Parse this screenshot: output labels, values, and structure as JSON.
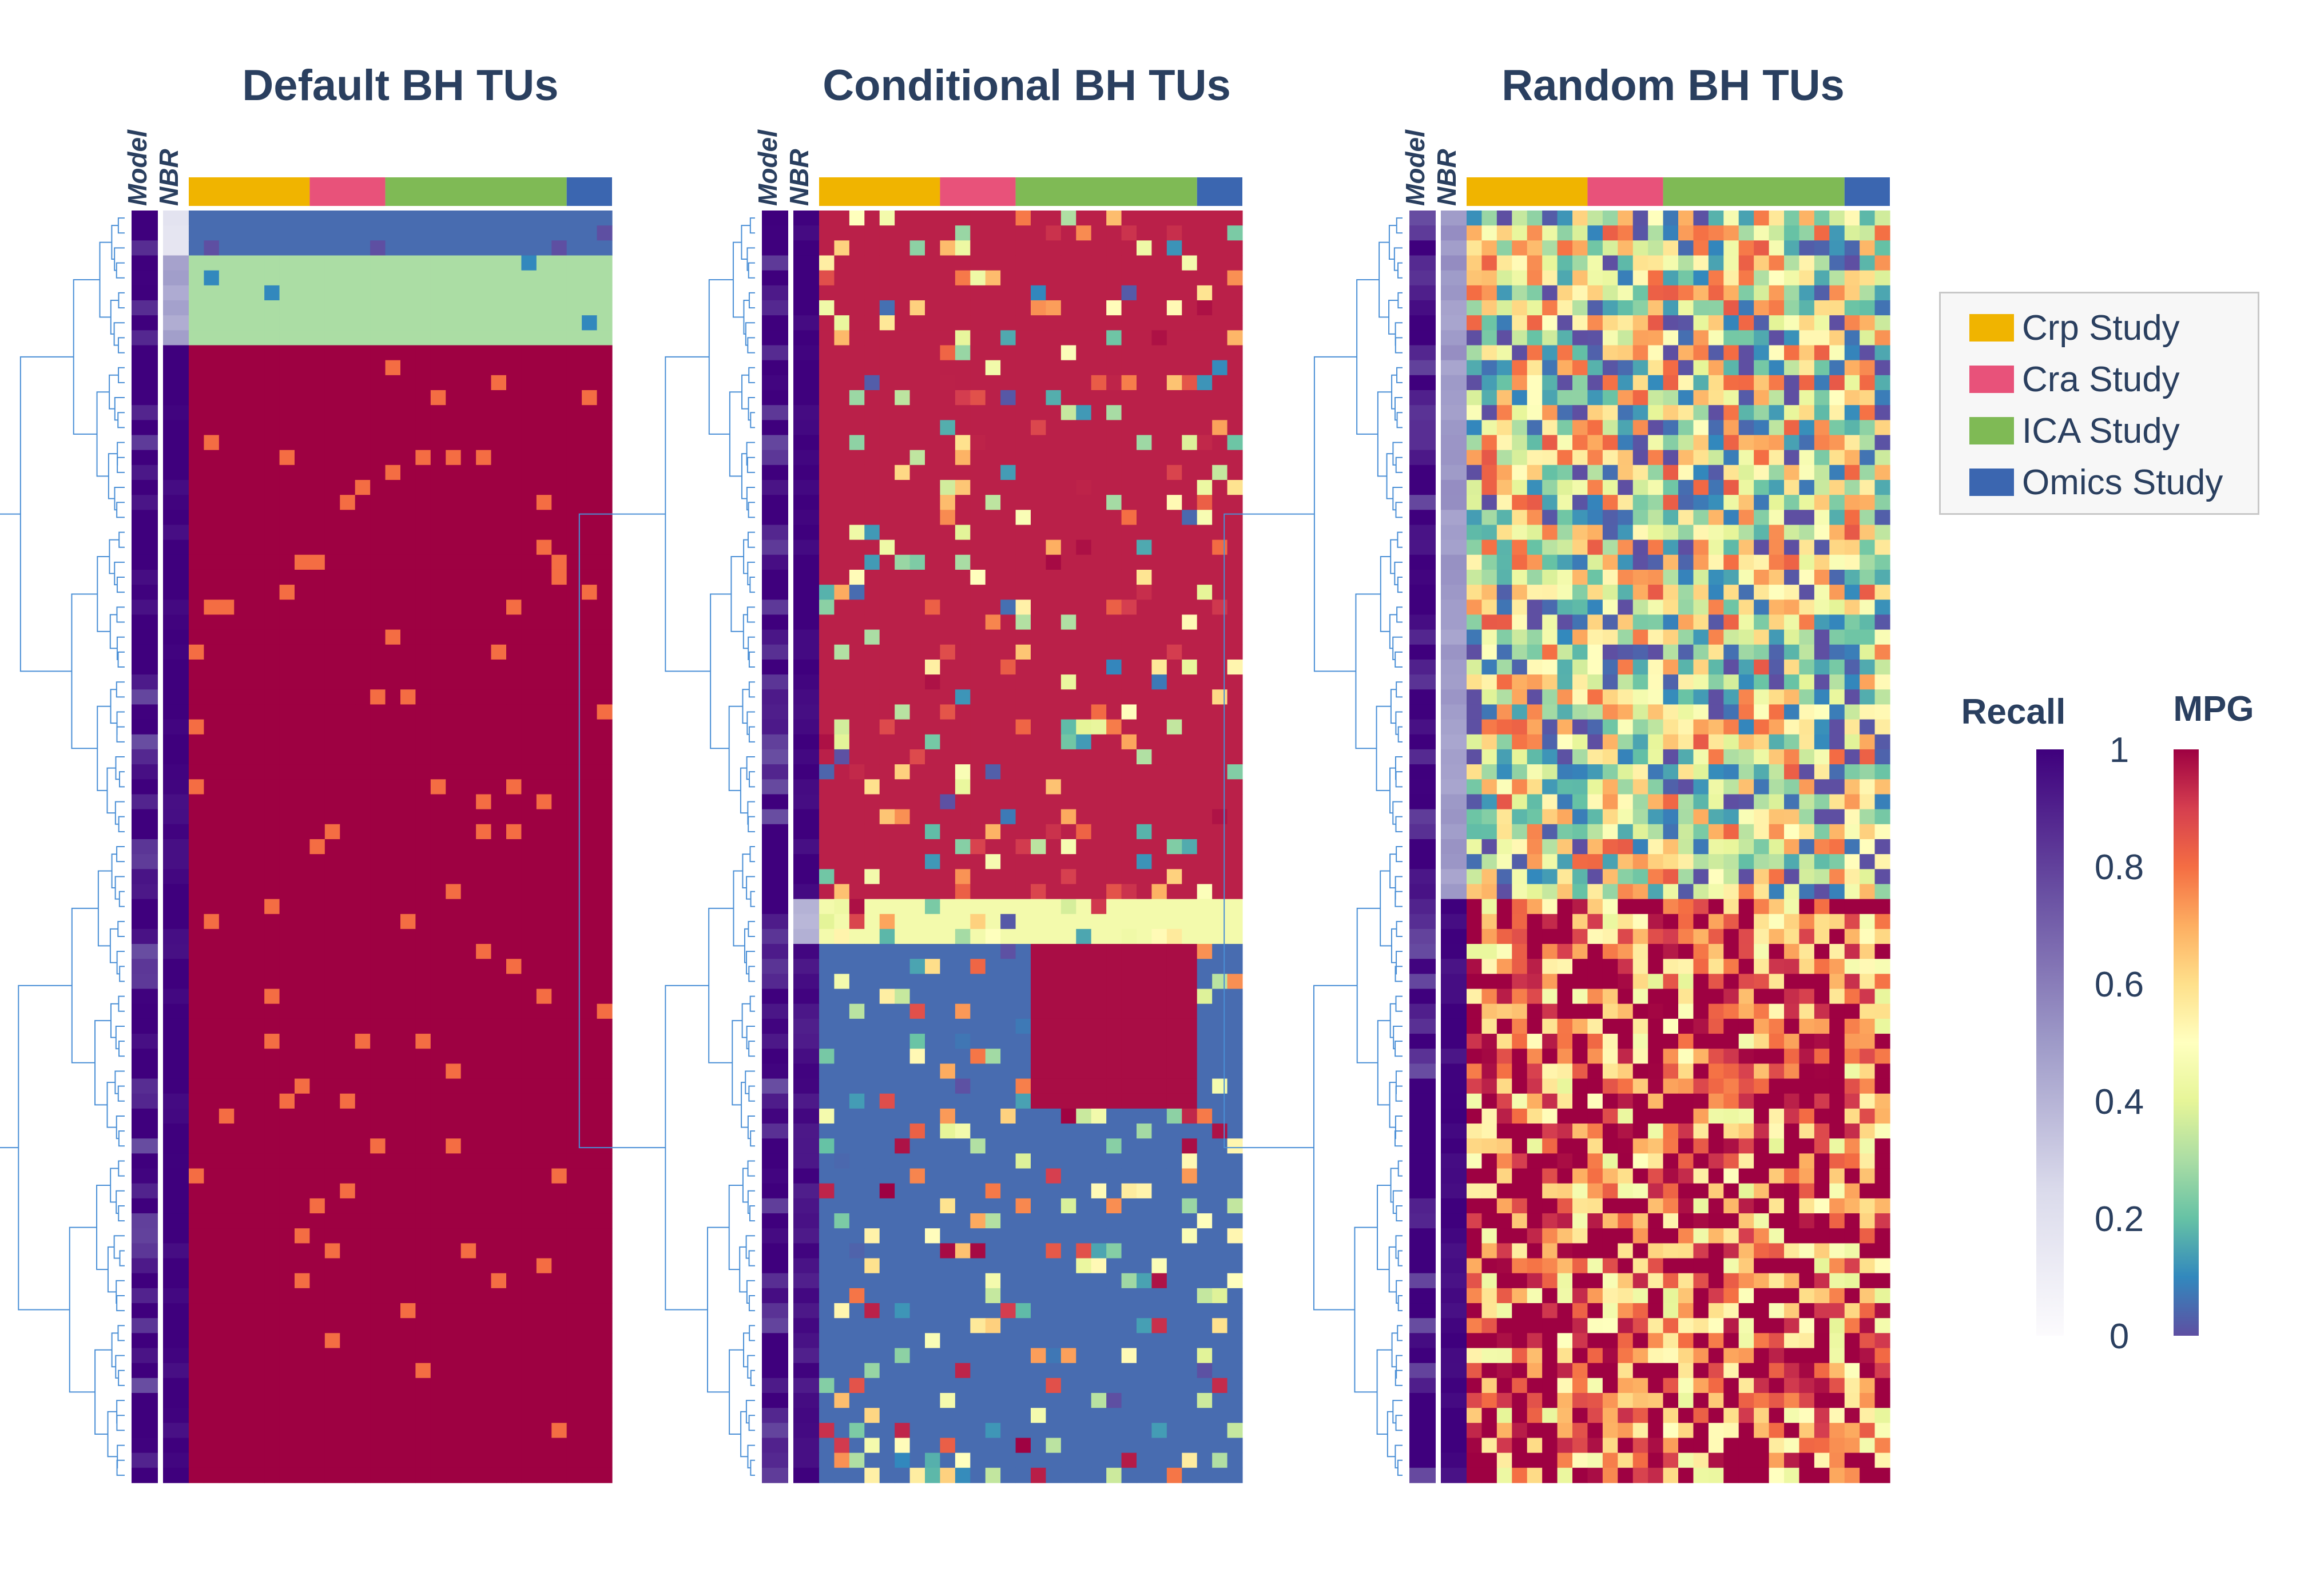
{
  "panels": [
    {
      "title": "Default BH TUs",
      "track_labels": [
        "Model",
        "NBR"
      ]
    },
    {
      "title": "Conditional BH TUs",
      "track_labels": [
        "Model",
        "NBR"
      ]
    },
    {
      "title": "Random BH TUs",
      "track_labels": [
        "Model",
        "NBR"
      ]
    }
  ],
  "legend": {
    "items": [
      {
        "label": "Crp Study",
        "color": "#f0b400"
      },
      {
        "label": "Cra Study",
        "color": "#e8527a"
      },
      {
        "label": "ICA Study",
        "color": "#7fba55"
      },
      {
        "label": "Omics Study",
        "color": "#3b66b0"
      }
    ]
  },
  "colorbars": {
    "recall": {
      "title": "Recall",
      "ticks": [
        "1",
        "0.8",
        "0.6",
        "0.4",
        "0.2",
        "0"
      ],
      "colorscale": "Purples",
      "range": [
        0,
        1
      ]
    },
    "mpg": {
      "title": "MPG",
      "colorscale": "Spectral",
      "range": [
        0,
        1
      ]
    }
  },
  "chart_data": {
    "type": "heatmap",
    "study_columns": [
      {
        "study": "Crp Study",
        "count": 8
      },
      {
        "study": "Cra Study",
        "count": 5
      },
      {
        "study": "ICA Study",
        "count": 12
      },
      {
        "study": "Omics Study",
        "count": 3
      }
    ],
    "value_name": "MPG",
    "row_annotations": [
      "Model",
      "NBR"
    ],
    "rows_per_panel": 85,
    "panels": [
      {
        "title": "Default BH TUs",
        "blocks": [
          {
            "rows": [
              0,
              3
            ],
            "mpg": 0.05,
            "nbr_recall": 0.2
          },
          {
            "rows": [
              3,
              9
            ],
            "mpg": 0.3,
            "nbr_recall": 0.45
          },
          {
            "rows": [
              9,
              85
            ],
            "mpg": 1.0,
            "nbr_recall": 1.0
          }
        ]
      },
      {
        "title": "Conditional BH TUs",
        "blocks": [
          {
            "rows": [
              0,
              46
            ],
            "mpg": 0.95,
            "nbr_recall": 1.0
          },
          {
            "rows": [
              46,
              49
            ],
            "mpg": 0.45,
            "nbr_recall": 0.4
          },
          {
            "rows": [
              49,
              85
            ],
            "mpg": 0.05,
            "nbr_recall": 0.95
          }
        ]
      },
      {
        "title": "Random BH TUs",
        "blocks": [
          {
            "rows": [
              0,
              46
            ],
            "mpg": 0.4,
            "nbr_recall": 0.5
          },
          {
            "rows": [
              46,
              85
            ],
            "mpg": 0.85,
            "nbr_recall": 0.98
          }
        ]
      }
    ]
  }
}
